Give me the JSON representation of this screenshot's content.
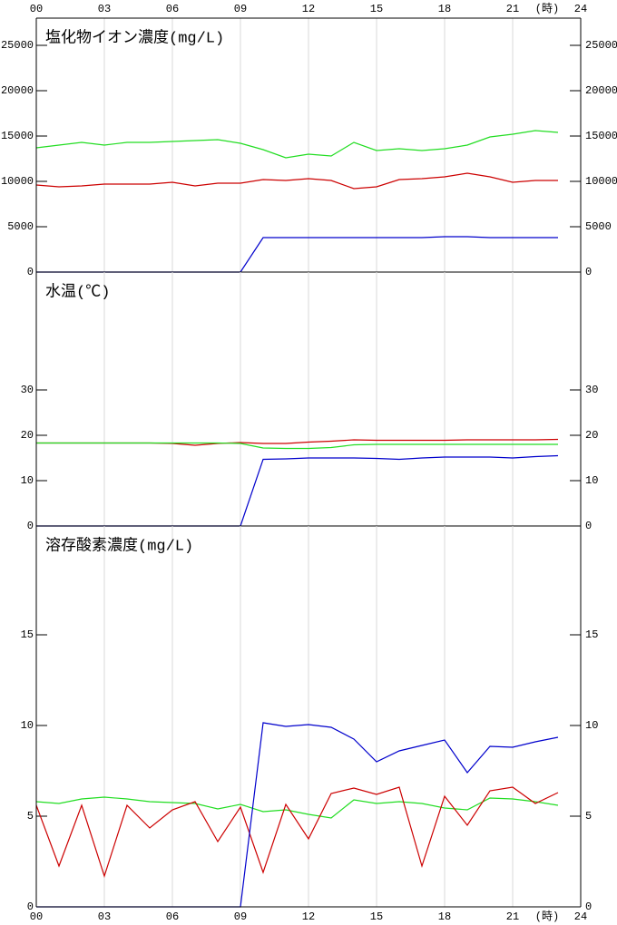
{
  "chart_data": [
    {
      "type": "line",
      "title": "塩化物イオン濃度(mg/L)",
      "x_unit": "(時)",
      "x": [
        0,
        1,
        2,
        3,
        4,
        5,
        6,
        7,
        8,
        9,
        10,
        11,
        12,
        13,
        14,
        15,
        16,
        17,
        18,
        19,
        20,
        21,
        22,
        23
      ],
      "xlim": [
        0,
        24
      ],
      "xticks": [
        {
          "value": 0,
          "label": "00"
        },
        {
          "value": 3,
          "label": "03"
        },
        {
          "value": 6,
          "label": "06"
        },
        {
          "value": 9,
          "label": "09"
        },
        12,
        15,
        18,
        21,
        24
      ],
      "ylim": [
        0,
        28000
      ],
      "yticks": [
        0,
        5000,
        10000,
        15000,
        20000,
        25000
      ],
      "series": [
        {
          "color": "#22dd22",
          "values": [
            13700,
            14000,
            14300,
            14000,
            14300,
            14300,
            14400,
            14500,
            14600,
            14200,
            13500,
            12600,
            13000,
            12800,
            14300,
            13400,
            13600,
            13400,
            13600,
            14000,
            14900,
            15200,
            15600,
            15400
          ]
        },
        {
          "color": "#cc0000",
          "values": [
            9600,
            9400,
            9500,
            9700,
            9700,
            9700,
            9900,
            9500,
            9800,
            9800,
            10200,
            10100,
            10300,
            10100,
            9200,
            9400,
            10200,
            10300,
            10500,
            10900,
            10500,
            9900,
            10100,
            10100
          ]
        },
        {
          "color": "#0000cc",
          "values": [
            0,
            0,
            0,
            0,
            0,
            0,
            0,
            0,
            0,
            0,
            3800,
            3800,
            3800,
            3800,
            3800,
            3800,
            3800,
            3800,
            3900,
            3900,
            3800,
            3800,
            3800,
            3800
          ]
        }
      ]
    },
    {
      "type": "line",
      "title": "水温(℃)",
      "x": [
        0,
        1,
        2,
        3,
        4,
        5,
        6,
        7,
        8,
        9,
        10,
        11,
        12,
        13,
        14,
        15,
        16,
        17,
        18,
        19,
        20,
        21,
        22,
        23
      ],
      "xlim": [
        0,
        24
      ],
      "xticks": [
        0,
        3,
        6,
        9,
        12,
        15,
        18,
        21,
        24
      ],
      "ylim": [
        0,
        56
      ],
      "yticks": [
        0,
        10,
        20,
        30
      ],
      "series": [
        {
          "color": "#cc0000",
          "values": [
            18.3,
            18.3,
            18.3,
            18.3,
            18.3,
            18.3,
            18.2,
            17.8,
            18.2,
            18.4,
            18.2,
            18.2,
            18.5,
            18.7,
            19,
            18.9,
            18.9,
            18.9,
            18.9,
            19,
            19,
            19,
            19,
            19.1
          ]
        },
        {
          "color": "#22dd22",
          "values": [
            18.3,
            18.3,
            18.3,
            18.3,
            18.3,
            18.3,
            18.3,
            18.3,
            18.3,
            18.2,
            17.2,
            17.1,
            17.1,
            17.3,
            17.9,
            18,
            18,
            18,
            18,
            18,
            18,
            18,
            18,
            18
          ]
        },
        {
          "color": "#0000cc",
          "values": [
            0,
            0,
            0,
            0,
            0,
            0,
            0,
            0,
            0,
            0,
            14.7,
            14.8,
            15,
            15,
            15,
            14.9,
            14.7,
            15,
            15.2,
            15.2,
            15.2,
            15,
            15.3,
            15.5
          ]
        }
      ]
    },
    {
      "type": "line",
      "title": "溶存酸素濃度(mg/L)",
      "x_unit": "(時)",
      "x": [
        0,
        1,
        2,
        3,
        4,
        5,
        6,
        7,
        8,
        9,
        10,
        11,
        12,
        13,
        14,
        15,
        16,
        17,
        18,
        19,
        20,
        21,
        22,
        23
      ],
      "xlim": [
        0,
        24
      ],
      "xticks": [
        {
          "value": 0,
          "label": "00"
        },
        {
          "value": 3,
          "label": "03"
        },
        {
          "value": 6,
          "label": "06"
        },
        {
          "value": 9,
          "label": "09"
        },
        12,
        15,
        18,
        21,
        24
      ],
      "ylim": [
        0,
        21
      ],
      "yticks": [
        0,
        5,
        10,
        15
      ],
      "series": [
        {
          "color": "#22dd22",
          "values": [
            5.8,
            5.7,
            5.95,
            6.05,
            5.95,
            5.8,
            5.75,
            5.7,
            5.4,
            5.65,
            5.25,
            5.35,
            5.1,
            4.9,
            5.9,
            5.7,
            5.8,
            5.7,
            5.45,
            5.35,
            6,
            5.95,
            5.8,
            5.6
          ]
        },
        {
          "color": "#cc0000",
          "values": [
            5.6,
            2.25,
            5.6,
            1.7,
            5.6,
            4.35,
            5.35,
            5.8,
            3.6,
            5.5,
            1.9,
            5.65,
            3.75,
            6.25,
            6.55,
            6.2,
            6.6,
            2.25,
            6.1,
            4.5,
            6.4,
            6.6,
            5.7,
            6.3
          ]
        },
        {
          "color": "#0000cc",
          "values": [
            0,
            0,
            0,
            0,
            0,
            0,
            0,
            0,
            0,
            0,
            10.15,
            9.95,
            10.05,
            9.9,
            9.25,
            8,
            8.6,
            8.9,
            9.2,
            7.4,
            8.85,
            8.8,
            9.1,
            9.35
          ]
        }
      ]
    }
  ]
}
